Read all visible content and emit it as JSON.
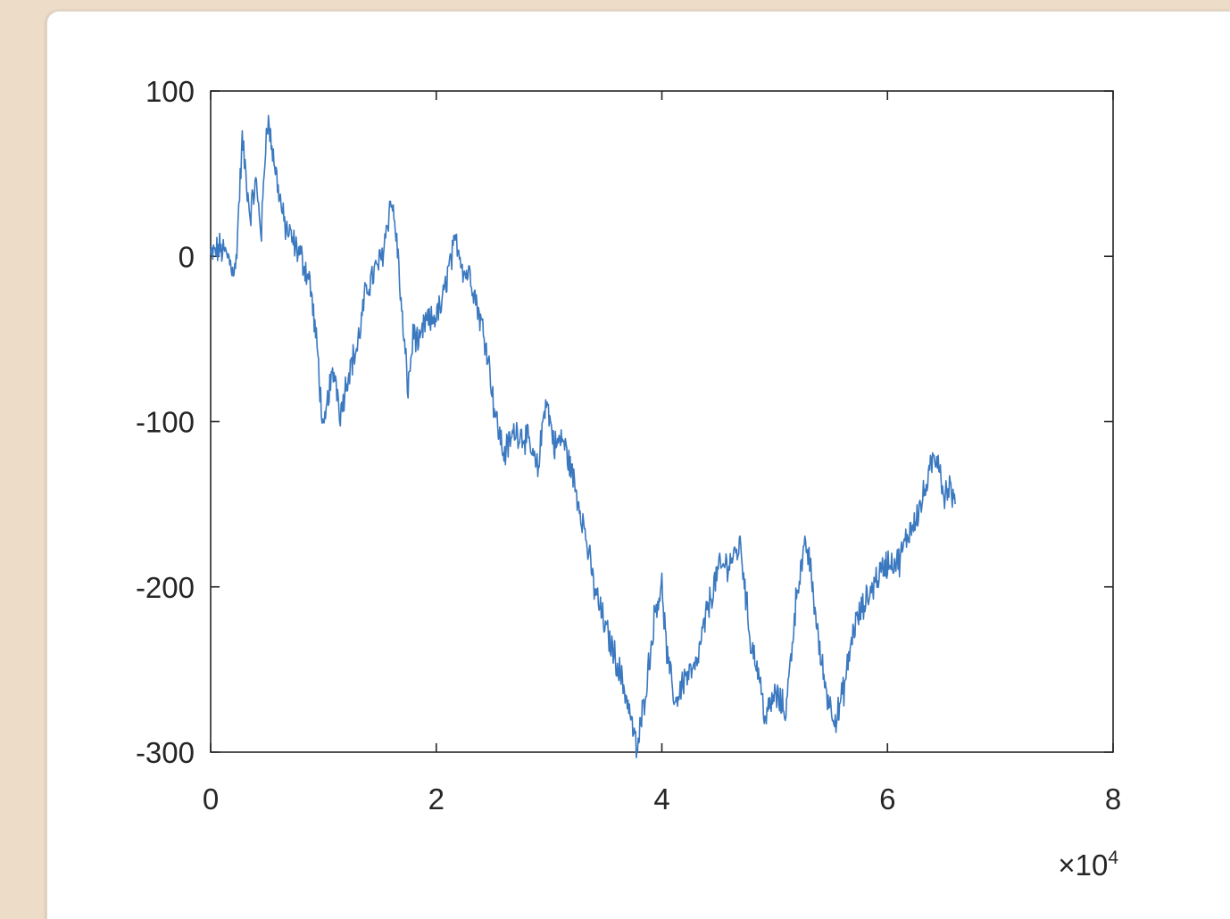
{
  "colors": {
    "background": "#ecdcc8",
    "panel": "#ffffff",
    "axis": "#262626",
    "line": "#3a78c0"
  },
  "chart_data": {
    "type": "line",
    "title": "",
    "xlabel": "",
    "ylabel": "",
    "xlim": [
      0,
      8
    ],
    "ylim": [
      -300,
      100
    ],
    "x_scale_label": "×10",
    "x_scale_exponent": "4",
    "x_ticks": [
      "0",
      "2",
      "4",
      "6",
      "8"
    ],
    "y_ticks": [
      "100",
      "0",
      "-100",
      "-200",
      "-300"
    ],
    "grid": false,
    "box": true,
    "series": [
      {
        "x": [
          0,
          0.08,
          0.15,
          0.22,
          0.28,
          0.35,
          0.4,
          0.45,
          0.5,
          0.58,
          0.65,
          0.72,
          0.8,
          0.88,
          0.95,
          1.0,
          1.05,
          1.1,
          1.15,
          1.22,
          1.3,
          1.38,
          1.45,
          1.52,
          1.6,
          1.65,
          1.7,
          1.75,
          1.8,
          1.85,
          1.9,
          1.95,
          2.05,
          2.1,
          2.18,
          2.25,
          2.3,
          2.38,
          2.45,
          2.52,
          2.6,
          2.7,
          2.8,
          2.9,
          2.97,
          3.05,
          3.12,
          3.2,
          3.3,
          3.4,
          3.5,
          3.6,
          3.7,
          3.78,
          3.82,
          3.87,
          3.95,
          4.0,
          4.05,
          4.12,
          4.2,
          4.3,
          4.4,
          4.5,
          4.6,
          4.7,
          4.78,
          4.85,
          4.92,
          5.0,
          5.1,
          5.2,
          5.28,
          5.32,
          5.4,
          5.48,
          5.55,
          5.62,
          5.7,
          5.8,
          5.9,
          6.0,
          6.1,
          6.2,
          6.3,
          6.4,
          6.45,
          6.5,
          6.55,
          6.6
        ],
        "y": [
          0,
          5,
          0,
          -10,
          70,
          25,
          45,
          15,
          85,
          50,
          20,
          10,
          0,
          -15,
          -60,
          -110,
          -80,
          -70,
          -95,
          -70,
          -55,
          -20,
          -10,
          0,
          35,
          10,
          -40,
          -80,
          -45,
          -55,
          -40,
          -40,
          -30,
          -10,
          10,
          -10,
          -10,
          -35,
          -55,
          -95,
          -120,
          -105,
          -110,
          -130,
          -85,
          -115,
          -110,
          -130,
          -160,
          -200,
          -225,
          -245,
          -270,
          -300,
          -280,
          -255,
          -210,
          -200,
          -245,
          -270,
          -255,
          -250,
          -215,
          -190,
          -185,
          -175,
          -230,
          -250,
          -280,
          -265,
          -275,
          -200,
          -175,
          -190,
          -240,
          -270,
          -280,
          -260,
          -225,
          -210,
          -195,
          -185,
          -185,
          -165,
          -150,
          -125,
          -120,
          -145,
          -140,
          -150
        ]
      }
    ]
  }
}
